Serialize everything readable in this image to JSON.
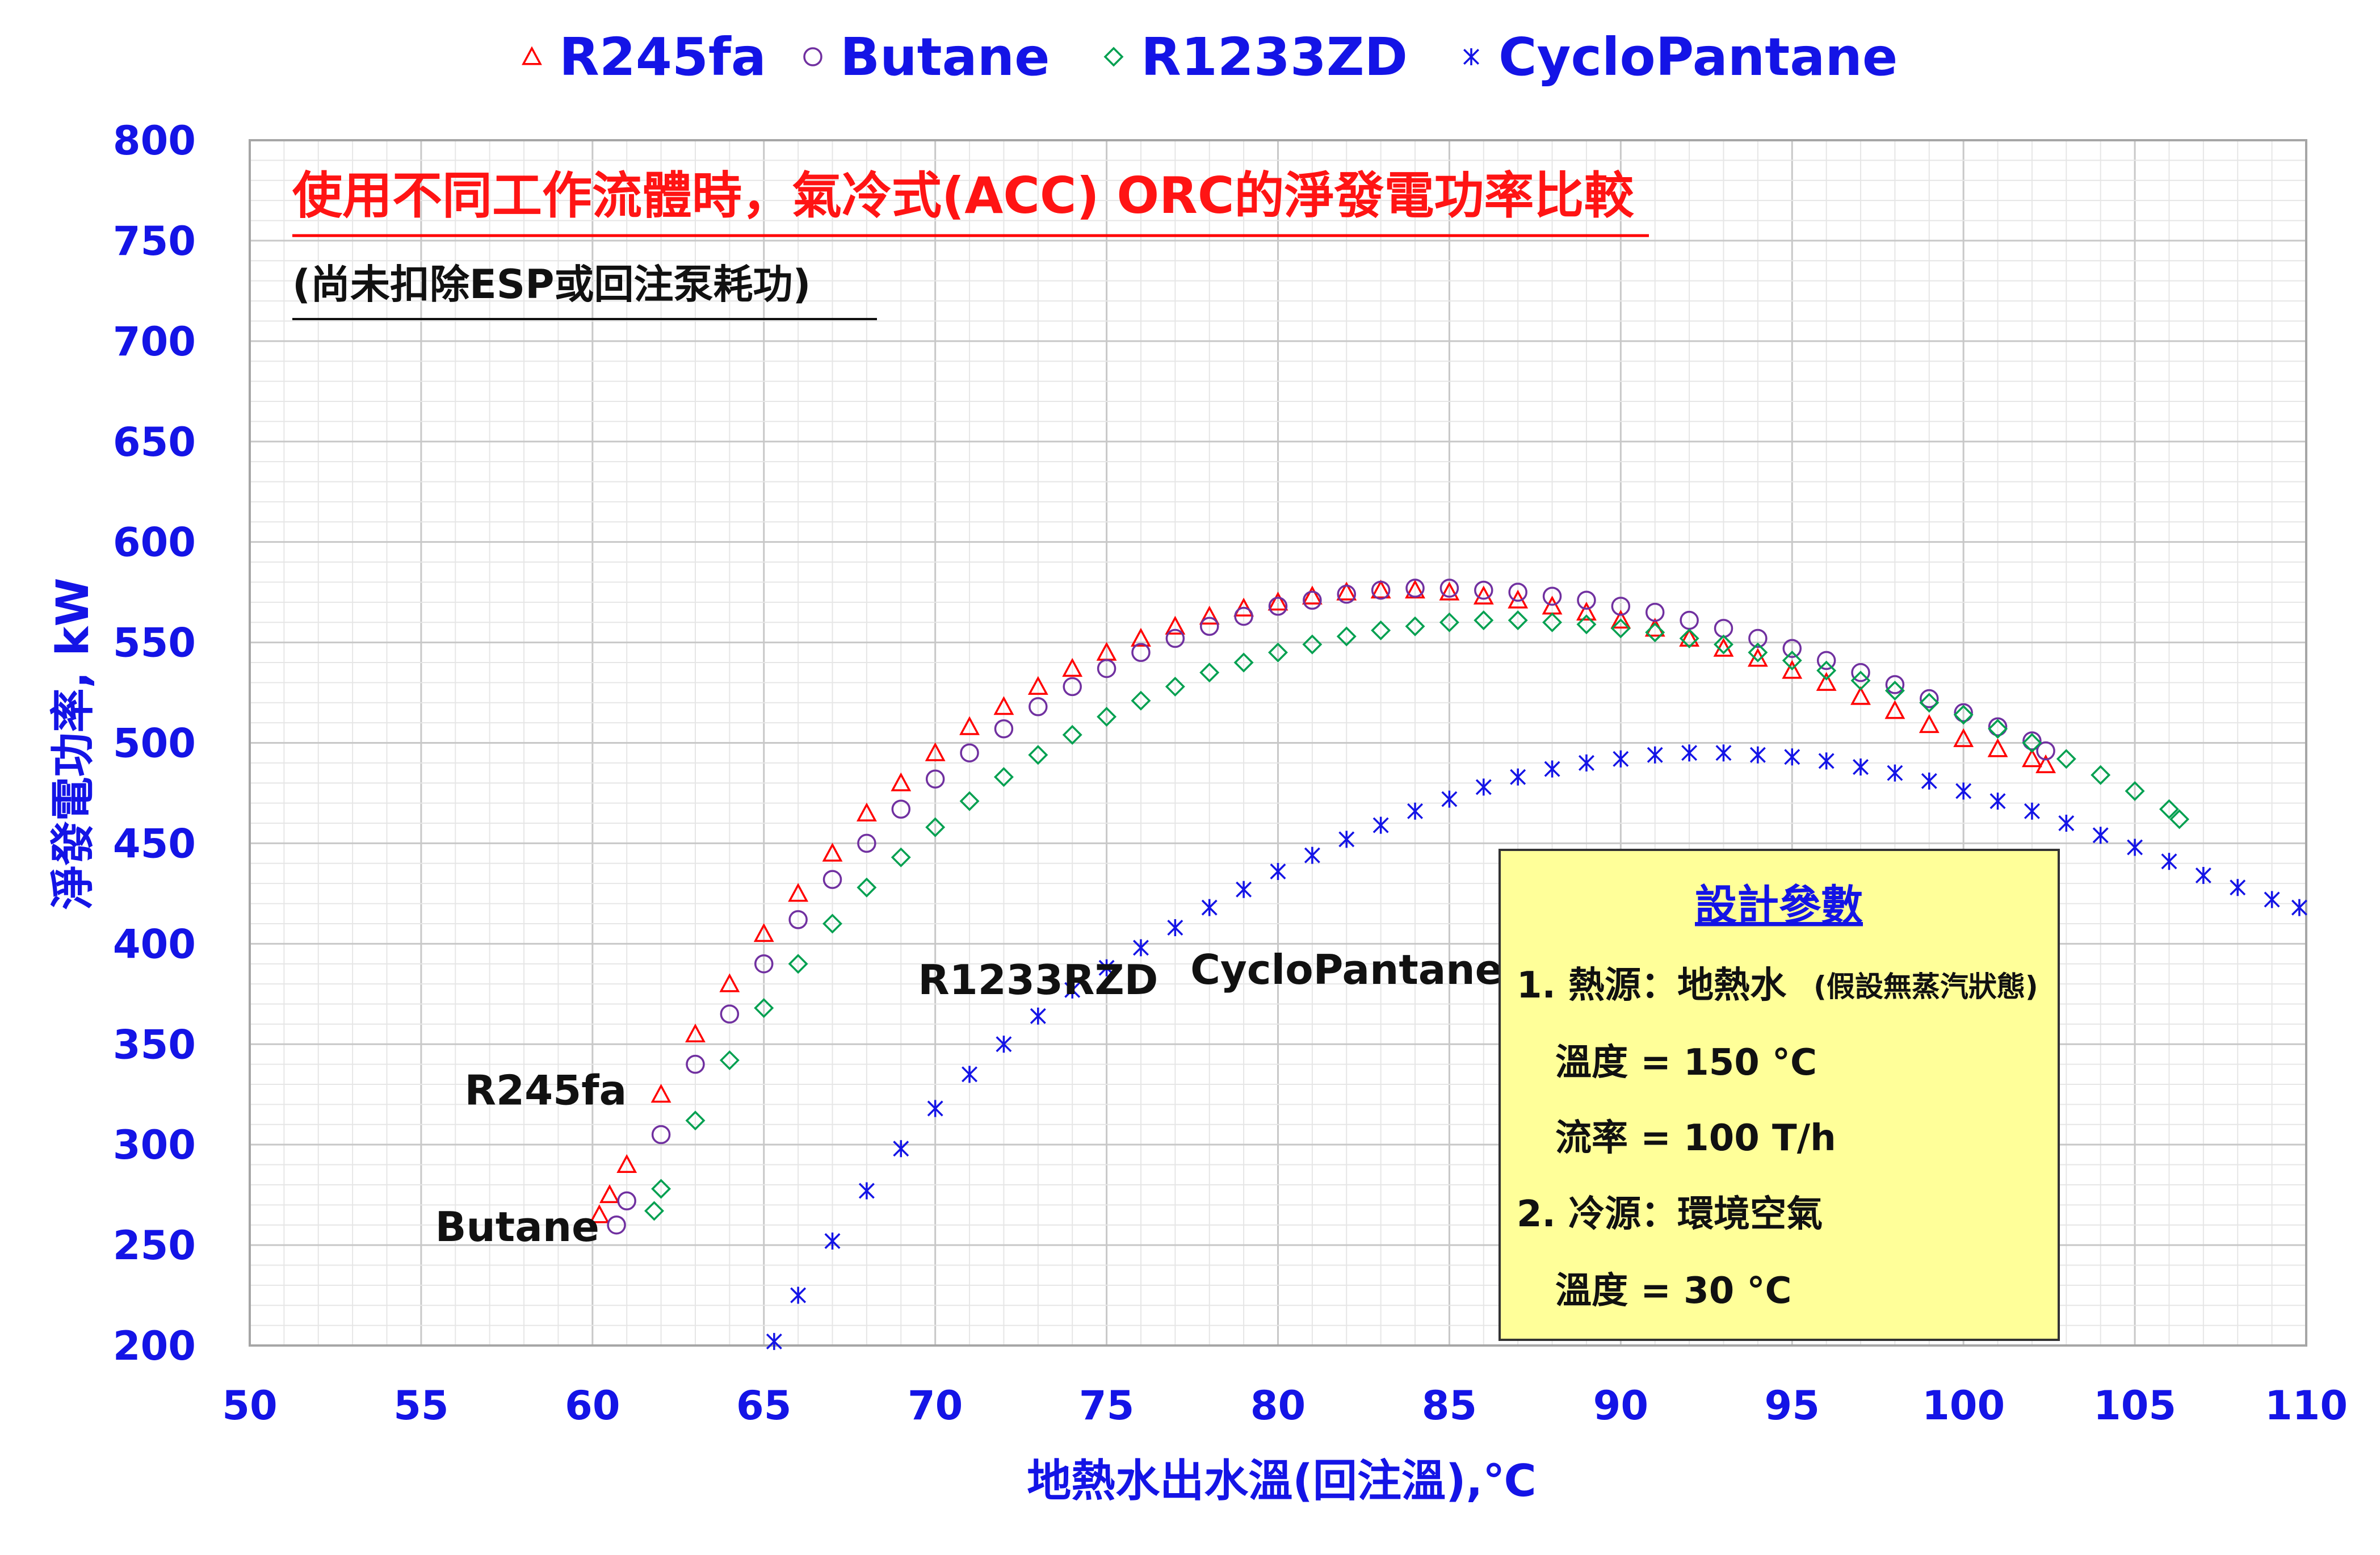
{
  "chart_data": {
    "type": "scatter",
    "title": "使用不同工作流體時，氣冷式(ACC) ORC的淨發電功率比較",
    "subtitle": "(尚未扣除ESP或回注泵耗功)",
    "xlabel": "地熱水出水溫(回注溫),℃",
    "ylabel": "淨發電功率, kW",
    "xlim": [
      50,
      110
    ],
    "ylim": [
      200,
      800
    ],
    "xticks": [
      "50",
      "55",
      "60",
      "65",
      "70",
      "75",
      "80",
      "85",
      "90",
      "95",
      "100",
      "105",
      "110"
    ],
    "yticks": [
      "200",
      "250",
      "300",
      "350",
      "400",
      "450",
      "500",
      "550",
      "600",
      "650",
      "700",
      "750",
      "800"
    ],
    "grid": true,
    "legend_position": "top",
    "series": [
      {
        "name": "R245fa",
        "marker": "triangle",
        "color": "#ff0000",
        "x": [
          60.2,
          60.5,
          61,
          62,
          63,
          64,
          65,
          66,
          67,
          68,
          69,
          70,
          71,
          72,
          73,
          74,
          75,
          76,
          77,
          78,
          79,
          80,
          81,
          82,
          83,
          84,
          85,
          86,
          87,
          88,
          89,
          90,
          91,
          92,
          93,
          94,
          95,
          96,
          97,
          98,
          99,
          100,
          101,
          102,
          102.4
        ],
        "y": [
          265,
          275,
          290,
          325,
          355,
          380,
          405,
          425,
          445,
          465,
          480,
          495,
          508,
          518,
          528,
          537,
          545,
          552,
          558,
          563,
          567,
          570,
          573,
          575,
          576,
          576,
          575,
          573,
          571,
          568,
          565,
          561,
          557,
          552,
          547,
          542,
          536,
          530,
          523,
          516,
          509,
          502,
          497,
          492,
          489
        ]
      },
      {
        "name": "Butane",
        "marker": "circle",
        "color": "#7030a0",
        "x": [
          60.7,
          61,
          62,
          63,
          64,
          65,
          66,
          67,
          68,
          69,
          70,
          71,
          72,
          73,
          74,
          75,
          76,
          77,
          78,
          79,
          80,
          81,
          82,
          83,
          84,
          85,
          86,
          87,
          88,
          89,
          90,
          91,
          92,
          93,
          94,
          95,
          96,
          97,
          98,
          99,
          100,
          101,
          102,
          102.4
        ],
        "y": [
          260,
          272,
          305,
          340,
          365,
          390,
          412,
          432,
          450,
          467,
          482,
          495,
          507,
          518,
          528,
          537,
          545,
          552,
          558,
          563,
          568,
          571,
          574,
          576,
          577,
          577,
          576,
          575,
          573,
          571,
          568,
          565,
          561,
          557,
          552,
          547,
          541,
          535,
          529,
          522,
          515,
          508,
          501,
          496
        ]
      },
      {
        "name": "R1233ZD",
        "marker": "diamond",
        "color": "#00a050",
        "x": [
          61.8,
          62,
          63,
          64,
          65,
          66,
          67,
          68,
          69,
          70,
          71,
          72,
          73,
          74,
          75,
          76,
          77,
          78,
          79,
          80,
          81,
          82,
          83,
          84,
          85,
          86,
          87,
          88,
          89,
          90,
          91,
          92,
          93,
          94,
          95,
          96,
          97,
          98,
          99,
          100,
          101,
          102,
          103,
          104,
          105,
          106,
          106.3
        ],
        "y": [
          267,
          278,
          312,
          342,
          368,
          390,
          410,
          428,
          443,
          458,
          471,
          483,
          494,
          504,
          513,
          521,
          528,
          535,
          540,
          545,
          549,
          553,
          556,
          558,
          560,
          561,
          561,
          560,
          559,
          557,
          555,
          552,
          549,
          545,
          541,
          536,
          531,
          526,
          520,
          514,
          507,
          500,
          492,
          484,
          476,
          467,
          462
        ]
      },
      {
        "name": "CycloPantane",
        "marker": "star",
        "color": "#1414e6",
        "x": [
          65.3,
          66,
          67,
          68,
          69,
          70,
          71,
          72,
          73,
          74,
          75,
          76,
          77,
          78,
          79,
          80,
          81,
          82,
          83,
          84,
          85,
          86,
          87,
          88,
          89,
          90,
          91,
          92,
          93,
          94,
          95,
          96,
          97,
          98,
          99,
          100,
          101,
          102,
          103,
          104,
          105,
          106,
          107,
          108,
          109,
          109.8
        ],
        "y": [
          202,
          225,
          252,
          277,
          298,
          318,
          335,
          350,
          364,
          377,
          388,
          398,
          408,
          418,
          427,
          436,
          444,
          452,
          459,
          466,
          472,
          478,
          483,
          487,
          490,
          492,
          494,
          495,
          495,
          494,
          493,
          491,
          488,
          485,
          481,
          476,
          471,
          466,
          460,
          454,
          448,
          441,
          434,
          428,
          422,
          418
        ]
      }
    ],
    "curve_labels": [
      {
        "text": "R245fa",
        "x": 61,
        "y": 320
      },
      {
        "text": "Butane",
        "x": 60.2,
        "y": 252
      },
      {
        "text": "R1233RZD",
        "x": 73,
        "y": 375
      },
      {
        "text": "CycloPantane",
        "x": 82,
        "y": 380
      }
    ],
    "info_box": {
      "title": "設計參數",
      "lines": [
        "1. 熱源：地熱水",
        "溫度 = 150 °C",
        "流率 = 100 T/h",
        "2. 冷源：環境空氣",
        "溫度 = 30 °C"
      ],
      "note": "(假設無蒸汽狀態)"
    }
  }
}
